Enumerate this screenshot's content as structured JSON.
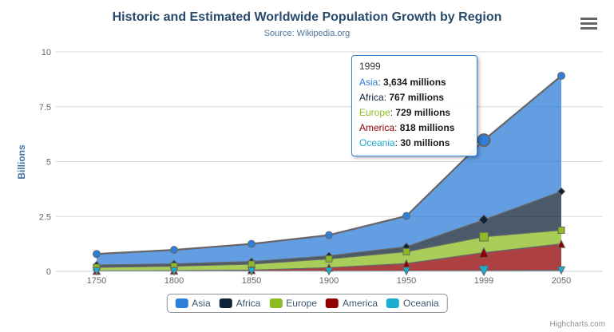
{
  "header": {
    "title": "Historic and Estimated Worldwide Population Growth by Region",
    "subtitle": "Source: Wikipedia.org"
  },
  "credits": {
    "label": "Highcharts.com"
  },
  "colors": {
    "title_text": "#274b6d",
    "subtitle_text": "#4d759e",
    "axis_label": "#666666",
    "axis_title": "#4572a7",
    "grid_line": "#d8d8d8",
    "axis_line": "#c0d0e0",
    "series_edge": "#666666",
    "legend_border": "#909090",
    "legend_text": "#3e576f",
    "tooltip_border": "#2f7ed8",
    "credits_text": "#909090",
    "menu_icon": "#666666"
  },
  "chart_data": {
    "type": "area",
    "stacking": "normal",
    "title": "Historic and Estimated Worldwide Population Growth by Region",
    "subtitle": "Source: Wikipedia.org",
    "xlabel": "",
    "ylabel": "Billions",
    "values_unit": "millions",
    "ylim": [
      0,
      10
    ],
    "yticks": [
      0,
      2.5,
      5,
      7.5,
      10
    ],
    "grid": true,
    "legend_position": "bottom",
    "categories": [
      "1750",
      "1800",
      "1850",
      "1900",
      "1950",
      "1999",
      "2050"
    ],
    "series": [
      {
        "name": "Asia",
        "color": "#2f7ed8",
        "marker": "circle",
        "values": [
          502,
          635,
          809,
          947,
          1402,
          3634,
          5268
        ]
      },
      {
        "name": "Africa",
        "color": "#0d233a",
        "marker": "diamond",
        "values": [
          106,
          107,
          111,
          133,
          221,
          767,
          1766
        ]
      },
      {
        "name": "Europe",
        "color": "#8bbc21",
        "marker": "square",
        "values": [
          163,
          203,
          276,
          408,
          547,
          729,
          628
        ]
      },
      {
        "name": "America",
        "color": "#910000",
        "marker": "triangle",
        "values": [
          18,
          31,
          54,
          156,
          339,
          818,
          1201
        ]
      },
      {
        "name": "Oceania",
        "color": "#1aadce",
        "marker": "triangle-down",
        "values": [
          2,
          2,
          2,
          6,
          13,
          30,
          46
        ]
      }
    ],
    "stack_order_bottom_to_top": [
      "Oceania",
      "America",
      "Europe",
      "Africa",
      "Asia"
    ],
    "hover_category": "1999"
  },
  "tooltip": {
    "title": "1999",
    "unit": "millions",
    "rows": [
      {
        "name": "Asia",
        "color": "#2f7ed8",
        "value": "3,634"
      },
      {
        "name": "Africa",
        "color": "#0d233a",
        "value": "767"
      },
      {
        "name": "Europe",
        "color": "#8bbc21",
        "value": "729"
      },
      {
        "name": "America",
        "color": "#910000",
        "value": "818"
      },
      {
        "name": "Oceania",
        "color": "#1aadce",
        "value": "30"
      }
    ]
  }
}
